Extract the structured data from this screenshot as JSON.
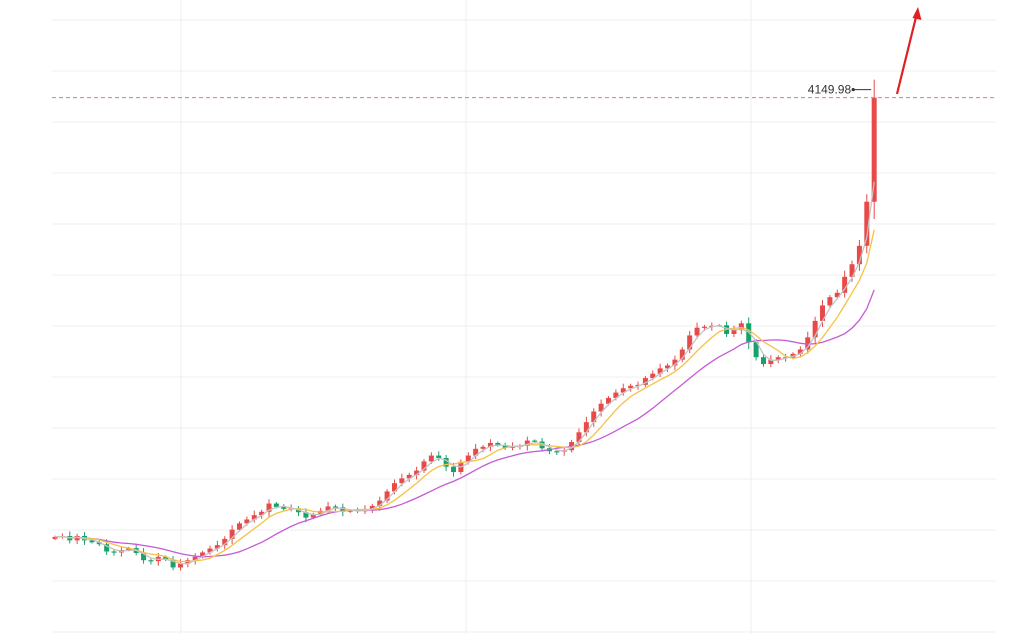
{
  "chart_data": {
    "type": "candlestick",
    "price_label": "4149.98",
    "last_price": 4149.98,
    "ylim": [
      3150,
      4240
    ],
    "grid": true,
    "colors": {
      "up": "#e84a4a",
      "down": "#15a36a",
      "ma_fast": "#c4c4c4",
      "ma_mid": "#f5c244",
      "ma_slow": "#c65ad6",
      "price_line": "#e27a7a",
      "arrow": "#e02020",
      "grid": "#efefef"
    },
    "closes": [
      3243,
      3245,
      3236,
      3245,
      3236,
      3232,
      3228,
      3213,
      3211,
      3216,
      3220,
      3210,
      3195,
      3193,
      3202,
      3196,
      3180,
      3188,
      3195,
      3202,
      3211,
      3219,
      3226,
      3239,
      3258,
      3271,
      3279,
      3288,
      3295,
      3312,
      3305,
      3301,
      3302,
      3294,
      3283,
      3290,
      3297,
      3306,
      3304,
      3295,
      3298,
      3296,
      3300,
      3307,
      3318,
      3337,
      3354,
      3364,
      3371,
      3380,
      3399,
      3411,
      3406,
      3388,
      3377,
      3398,
      3411,
      3425,
      3429,
      3437,
      3432,
      3427,
      3430,
      3431,
      3442,
      3440,
      3426,
      3420,
      3419,
      3422,
      3439,
      3459,
      3480,
      3502,
      3518,
      3530,
      3541,
      3550,
      3555,
      3557,
      3571,
      3580,
      3591,
      3597,
      3609,
      3630,
      3659,
      3675,
      3677,
      3679,
      3680,
      3662,
      3670,
      3684,
      3645,
      3614,
      3600,
      3609,
      3614,
      3613,
      3621,
      3630,
      3655,
      3689,
      3721,
      3738,
      3747,
      3780,
      3806,
      3844,
      3935,
      4149.98
    ]
  }
}
